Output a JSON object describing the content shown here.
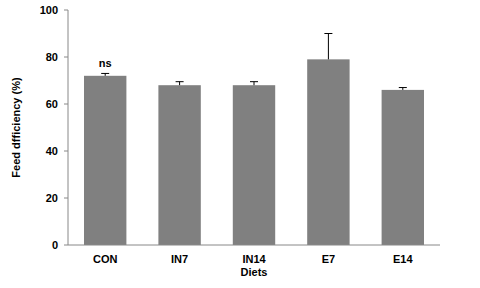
{
  "chart_data": {
    "type": "bar",
    "categories": [
      "CON",
      "IN7",
      "IN14",
      "E7",
      "E14"
    ],
    "values": [
      72,
      68,
      68,
      79,
      66
    ],
    "errors": [
      1,
      1.5,
      1.5,
      11,
      1
    ],
    "color": "#808080",
    "x_label": "Diets",
    "y_label": "Feed dfficiency (%)",
    "ylim": [
      0,
      100
    ],
    "yticks": [
      0,
      20,
      40,
      60,
      80,
      100
    ],
    "grid": false,
    "annotations": [
      {
        "text": "ns",
        "category": 0
      }
    ]
  }
}
